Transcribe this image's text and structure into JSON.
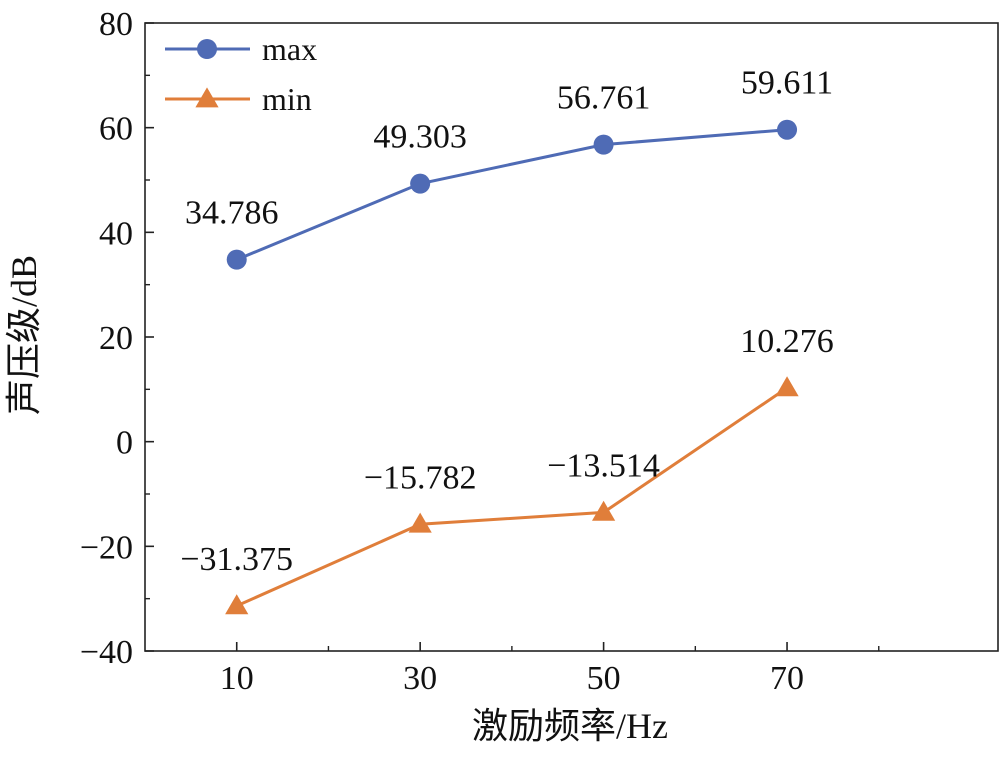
{
  "chart_data": {
    "type": "line",
    "x": [
      10,
      30,
      50,
      70
    ],
    "xticks": [
      "10",
      "30",
      "50",
      "70"
    ],
    "yticks": [
      "80",
      "60",
      "40",
      "20",
      "0",
      "−20",
      "−40"
    ],
    "xlabel": "激励频率/Hz",
    "ylabel": "声压级/dB",
    "xlim": [
      0,
      93
    ],
    "ylim": [
      -40,
      80
    ],
    "grid": false,
    "legend_position": "top-left",
    "series": [
      {
        "name": "max",
        "marker": "circle",
        "color": "#4F6BB5",
        "values": [
          34.786,
          49.303,
          56.761,
          59.611
        ],
        "labels": [
          "34.786",
          "49.303",
          "56.761",
          "59.611"
        ]
      },
      {
        "name": "min",
        "marker": "triangle",
        "color": "#E07E3A",
        "values": [
          -31.375,
          -15.782,
          -13.514,
          10.276
        ],
        "labels": [
          "−31.375",
          "−15.782",
          "−13.514",
          "10.276"
        ]
      }
    ]
  }
}
